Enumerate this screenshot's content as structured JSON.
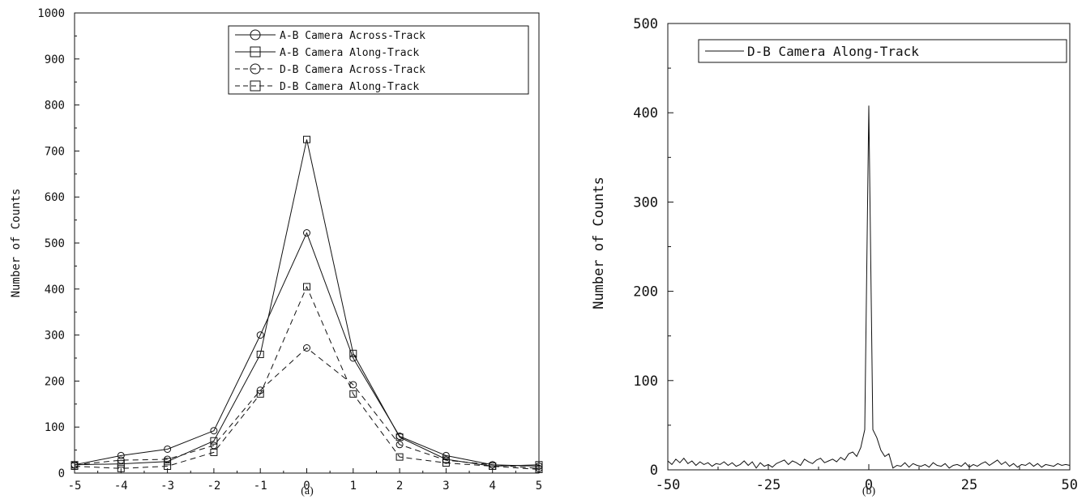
{
  "chart_data": [
    {
      "type": "line",
      "caption": "(a)",
      "ylabel": "Number of Counts",
      "xlim": [
        -5,
        5
      ],
      "ylim": [
        0,
        1000
      ],
      "x_ticks": [
        "-5",
        "-4",
        "-3",
        "-2",
        "-1",
        "0",
        "1",
        "2",
        "3",
        "4",
        "5"
      ],
      "y_ticks": [
        "0",
        "100",
        "200",
        "300",
        "400",
        "500",
        "600",
        "700",
        "800",
        "900",
        "1000"
      ],
      "legend_position": "top-right",
      "x": [
        -5,
        -4,
        -3,
        -2,
        -1,
        0,
        1,
        2,
        3,
        4,
        5
      ],
      "series": [
        {
          "name": "A-B Camera Across-Track",
          "marker": "circle",
          "dash": "solid",
          "values": [
            18,
            38,
            52,
            92,
            300,
            522,
            250,
            80,
            38,
            18,
            15
          ]
        },
        {
          "name": "A-B Camera Along-Track",
          "marker": "square",
          "dash": "solid",
          "values": [
            18,
            20,
            25,
            70,
            258,
            725,
            260,
            78,
            30,
            15,
            18
          ]
        },
        {
          "name": "D-B Camera Across-Track",
          "marker": "circle",
          "dash": "dashed",
          "values": [
            18,
            28,
            30,
            60,
            180,
            272,
            192,
            62,
            28,
            18,
            10
          ]
        },
        {
          "name": "D-B Camera Along-Track",
          "marker": "square",
          "dash": "dashed",
          "values": [
            15,
            10,
            15,
            45,
            172,
            405,
            172,
            35,
            22,
            15,
            8
          ]
        }
      ]
    },
    {
      "type": "line",
      "caption": "(b)",
      "ylabel": "Number of Counts",
      "xlim": [
        -50,
        50
      ],
      "ylim": [
        0,
        500
      ],
      "x_ticks": [
        "-50",
        "-25",
        "0",
        "25",
        "50"
      ],
      "y_ticks": [
        "0",
        "100",
        "200",
        "300",
        "400",
        "500"
      ],
      "legend_position": "top-right",
      "series": [
        {
          "name": "D-B Camera Along-Track",
          "x": [
            -50,
            -49,
            -48,
            -47,
            -46,
            -45,
            -44,
            -43,
            -42,
            -41,
            -40,
            -39,
            -38,
            -37,
            -36,
            -35,
            -34,
            -33,
            -32,
            -31,
            -30,
            -29,
            -28,
            -27,
            -26,
            -25,
            -24,
            -23,
            -22,
            -21,
            -20,
            -19,
            -18,
            -17,
            -16,
            -15,
            -14,
            -13,
            -12,
            -11,
            -10,
            -9,
            -8,
            -7,
            -6,
            -5,
            -4,
            -3,
            -2,
            -1,
            0,
            1,
            2,
            3,
            4,
            5,
            6,
            7,
            8,
            9,
            10,
            11,
            12,
            13,
            14,
            15,
            16,
            17,
            18,
            19,
            20,
            21,
            22,
            23,
            24,
            25,
            26,
            27,
            28,
            29,
            30,
            31,
            32,
            33,
            34,
            35,
            36,
            37,
            38,
            39,
            40,
            41,
            42,
            43,
            44,
            45,
            46,
            47,
            48,
            49,
            50
          ],
          "values": [
            10,
            6,
            12,
            8,
            13,
            7,
            10,
            5,
            9,
            6,
            8,
            4,
            7,
            6,
            9,
            5,
            8,
            4,
            6,
            10,
            5,
            9,
            2,
            8,
            4,
            6,
            3,
            7,
            9,
            11,
            6,
            10,
            8,
            5,
            12,
            9,
            7,
            11,
            13,
            8,
            10,
            12,
            9,
            14,
            11,
            18,
            20,
            15,
            25,
            45,
            408,
            45,
            36,
            22,
            15,
            18,
            2,
            5,
            4,
            8,
            3,
            7,
            5,
            4,
            6,
            3,
            8,
            5,
            4,
            7,
            2,
            5,
            6,
            4,
            8,
            3,
            6,
            4,
            7,
            9,
            5,
            8,
            11,
            6,
            9,
            4,
            7,
            3,
            6,
            5,
            8,
            4,
            7,
            3,
            6,
            5,
            4,
            7,
            5,
            6,
            5
          ]
        }
      ]
    }
  ]
}
